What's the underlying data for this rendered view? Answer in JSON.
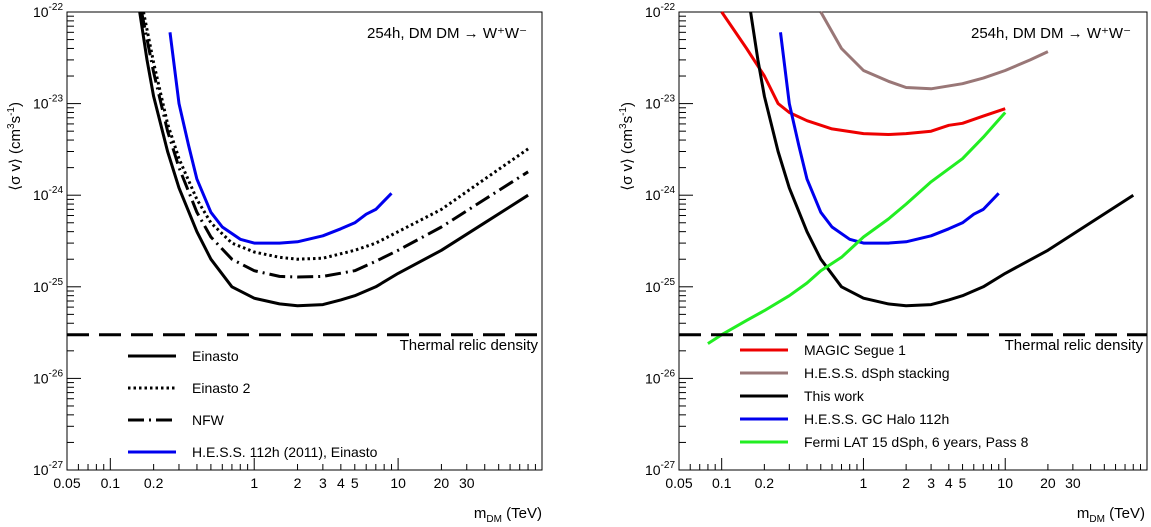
{
  "chart_data": [
    {
      "type": "line",
      "title": "",
      "annotation": "254h, DM DM → W⁺W⁻",
      "xlabel": "m_DM (TeV)",
      "ylabel": "⟨σ v⟩ (cm³s⁻¹)",
      "xscale": "log",
      "yscale": "log",
      "xlim": [
        0.05,
        100
      ],
      "ylim": [
        1e-27,
        1e-22
      ],
      "x_tick_labels": [
        "0.05",
        "0.1",
        "0.2",
        "1",
        "2",
        "3",
        "4",
        "5",
        "10",
        "20",
        "30"
      ],
      "y_tick_labels": [
        "10^-27",
        "10^-26",
        "10^-25",
        "10^-24",
        "10^-23",
        "10^-22"
      ],
      "legend_position": "bottom-left",
      "reference_line": {
        "label": "Thermal relic density",
        "y": 3e-26
      },
      "series": [
        {
          "name": "Einasto",
          "color": "#000000",
          "style": "solid",
          "points": [
            [
              0.16,
              1e-22
            ],
            [
              0.18,
              3e-23
            ],
            [
              0.2,
              1.2e-23
            ],
            [
              0.25,
              3e-24
            ],
            [
              0.3,
              1.2e-24
            ],
            [
              0.4,
              4e-25
            ],
            [
              0.5,
              2e-25
            ],
            [
              0.7,
              1e-25
            ],
            [
              1,
              7.5e-26
            ],
            [
              1.5,
              6.5e-26
            ],
            [
              2,
              6.2e-26
            ],
            [
              3,
              6.4e-26
            ],
            [
              4,
              7.2e-26
            ],
            [
              5,
              8e-26
            ],
            [
              7,
              1e-25
            ],
            [
              10,
              1.4e-25
            ],
            [
              20,
              2.5e-25
            ],
            [
              40,
              5e-25
            ],
            [
              80,
              1e-24
            ]
          ]
        },
        {
          "name": "Einasto 2",
          "color": "#000000",
          "style": "dotted",
          "points": [
            [
              0.17,
              1e-22
            ],
            [
              0.2,
              2.8e-23
            ],
            [
              0.25,
              6e-24
            ],
            [
              0.3,
              2.5e-24
            ],
            [
              0.4,
              9e-25
            ],
            [
              0.5,
              5e-25
            ],
            [
              0.7,
              3e-25
            ],
            [
              1,
              2.4e-25
            ],
            [
              1.5,
              2.1e-25
            ],
            [
              2,
              2e-25
            ],
            [
              3,
              2.05e-25
            ],
            [
              5,
              2.5e-25
            ],
            [
              7,
              3e-25
            ],
            [
              10,
              4e-25
            ],
            [
              20,
              7e-25
            ],
            [
              40,
              1.5e-24
            ],
            [
              80,
              3.2e-24
            ]
          ]
        },
        {
          "name": "NFW",
          "color": "#000000",
          "style": "dashdot",
          "points": [
            [
              0.165,
              1e-22
            ],
            [
              0.2,
              2.2e-23
            ],
            [
              0.25,
              5e-24
            ],
            [
              0.3,
              2e-24
            ],
            [
              0.4,
              6.5e-25
            ],
            [
              0.5,
              3.5e-25
            ],
            [
              0.7,
              2e-25
            ],
            [
              1,
              1.5e-25
            ],
            [
              1.5,
              1.3e-25
            ],
            [
              2,
              1.28e-25
            ],
            [
              3,
              1.3e-25
            ],
            [
              5,
              1.5e-25
            ],
            [
              7,
              1.9e-25
            ],
            [
              10,
              2.5e-25
            ],
            [
              20,
              4.5e-25
            ],
            [
              40,
              9e-25
            ],
            [
              80,
              1.8e-24
            ]
          ]
        },
        {
          "name": "H.E.S.S. 112h (2011), Einasto",
          "color": "#0000ee",
          "style": "solid",
          "points": [
            [
              0.26,
              6e-23
            ],
            [
              0.3,
              1e-23
            ],
            [
              0.35,
              3.5e-24
            ],
            [
              0.4,
              1.5e-24
            ],
            [
              0.5,
              6.5e-25
            ],
            [
              0.6,
              4.5e-25
            ],
            [
              0.8,
              3.3e-25
            ],
            [
              1,
              3e-25
            ],
            [
              1.5,
              3e-25
            ],
            [
              2,
              3.1e-25
            ],
            [
              3,
              3.6e-25
            ],
            [
              4,
              4.3e-25
            ],
            [
              5,
              5e-25
            ],
            [
              6,
              6.2e-25
            ],
            [
              7,
              7e-25
            ],
            [
              9,
              1.05e-24
            ]
          ]
        }
      ]
    },
    {
      "type": "line",
      "title": "",
      "annotation": "254h, DM DM → W⁺W⁻",
      "xlabel": "m_DM (TeV)",
      "ylabel": "⟨σ v⟩ (cm³s⁻¹)",
      "xscale": "log",
      "yscale": "log",
      "xlim": [
        0.05,
        100
      ],
      "ylim": [
        1e-27,
        1e-22
      ],
      "x_tick_labels": [
        "0.05",
        "0.1",
        "0.2",
        "1",
        "2",
        "3",
        "4",
        "5",
        "10",
        "20",
        "30"
      ],
      "y_tick_labels": [
        "10^-27",
        "10^-26",
        "10^-25",
        "10^-24",
        "10^-23",
        "10^-22"
      ],
      "legend_position": "bottom-left",
      "reference_line": {
        "label": "Thermal relic density",
        "y": 3e-26
      },
      "series": [
        {
          "name": "MAGIC Segue 1",
          "color": "#ee0000",
          "style": "solid",
          "points": [
            [
              0.1,
              1e-22
            ],
            [
              0.15,
              4e-23
            ],
            [
              0.2,
              2e-23
            ],
            [
              0.25,
              1e-23
            ],
            [
              0.3,
              8e-24
            ],
            [
              0.4,
              6.5e-24
            ],
            [
              0.6,
              5.3e-24
            ],
            [
              1,
              4.7e-24
            ],
            [
              1.5,
              4.6e-24
            ],
            [
              2,
              4.7e-24
            ],
            [
              3,
              5e-24
            ],
            [
              4,
              5.8e-24
            ],
            [
              5,
              6.1e-24
            ],
            [
              7,
              7.3e-24
            ],
            [
              10,
              8.8e-24
            ]
          ]
        },
        {
          "name": "H.E.S.S. dSph stacking",
          "color": "#997777",
          "style": "solid",
          "points": [
            [
              0.5,
              1e-22
            ],
            [
              0.7,
              4e-23
            ],
            [
              1,
              2.3e-23
            ],
            [
              1.5,
              1.75e-23
            ],
            [
              2,
              1.5e-23
            ],
            [
              3,
              1.45e-23
            ],
            [
              5,
              1.65e-23
            ],
            [
              7,
              1.9e-23
            ],
            [
              10,
              2.3e-23
            ],
            [
              15,
              3e-23
            ],
            [
              20,
              3.7e-23
            ]
          ]
        },
        {
          "name": "This work",
          "color": "#000000",
          "style": "solid",
          "points": [
            [
              0.16,
              1e-22
            ],
            [
              0.18,
              3e-23
            ],
            [
              0.2,
              1.2e-23
            ],
            [
              0.25,
              3e-24
            ],
            [
              0.3,
              1.2e-24
            ],
            [
              0.4,
              4e-25
            ],
            [
              0.5,
              2e-25
            ],
            [
              0.7,
              1e-25
            ],
            [
              1,
              7.5e-26
            ],
            [
              1.5,
              6.5e-26
            ],
            [
              2,
              6.2e-26
            ],
            [
              3,
              6.4e-26
            ],
            [
              4,
              7.2e-26
            ],
            [
              5,
              8e-26
            ],
            [
              7,
              1e-25
            ],
            [
              10,
              1.4e-25
            ],
            [
              20,
              2.5e-25
            ],
            [
              40,
              5e-25
            ],
            [
              80,
              1e-24
            ]
          ]
        },
        {
          "name": "H.E.S.S. GC Halo 112h",
          "color": "#0000ee",
          "style": "solid",
          "points": [
            [
              0.26,
              6e-23
            ],
            [
              0.3,
              1e-23
            ],
            [
              0.35,
              3.5e-24
            ],
            [
              0.4,
              1.5e-24
            ],
            [
              0.5,
              6.5e-25
            ],
            [
              0.6,
              4.5e-25
            ],
            [
              0.8,
              3.3e-25
            ],
            [
              1,
              3e-25
            ],
            [
              1.5,
              3e-25
            ],
            [
              2,
              3.1e-25
            ],
            [
              3,
              3.6e-25
            ],
            [
              4,
              4.3e-25
            ],
            [
              5,
              5e-25
            ],
            [
              6,
              6.2e-25
            ],
            [
              7,
              7e-25
            ],
            [
              9,
              1.05e-24
            ]
          ]
        },
        {
          "name": "Fermi LAT 15 dSph, 6 years, Pass 8",
          "color": "#22ee22",
          "style": "solid",
          "points": [
            [
              0.08,
              2.4e-26
            ],
            [
              0.1,
              3e-26
            ],
            [
              0.15,
              4.3e-26
            ],
            [
              0.2,
              5.5e-26
            ],
            [
              0.3,
              8e-26
            ],
            [
              0.4,
              1.1e-25
            ],
            [
              0.5,
              1.5e-25
            ],
            [
              0.7,
              2.1e-25
            ],
            [
              1,
              3.5e-25
            ],
            [
              1.5,
              5.5e-25
            ],
            [
              2,
              8e-25
            ],
            [
              3,
              1.4e-24
            ],
            [
              5,
              2.5e-24
            ],
            [
              7,
              4.3e-24
            ],
            [
              10,
              8e-24
            ]
          ]
        }
      ]
    }
  ]
}
